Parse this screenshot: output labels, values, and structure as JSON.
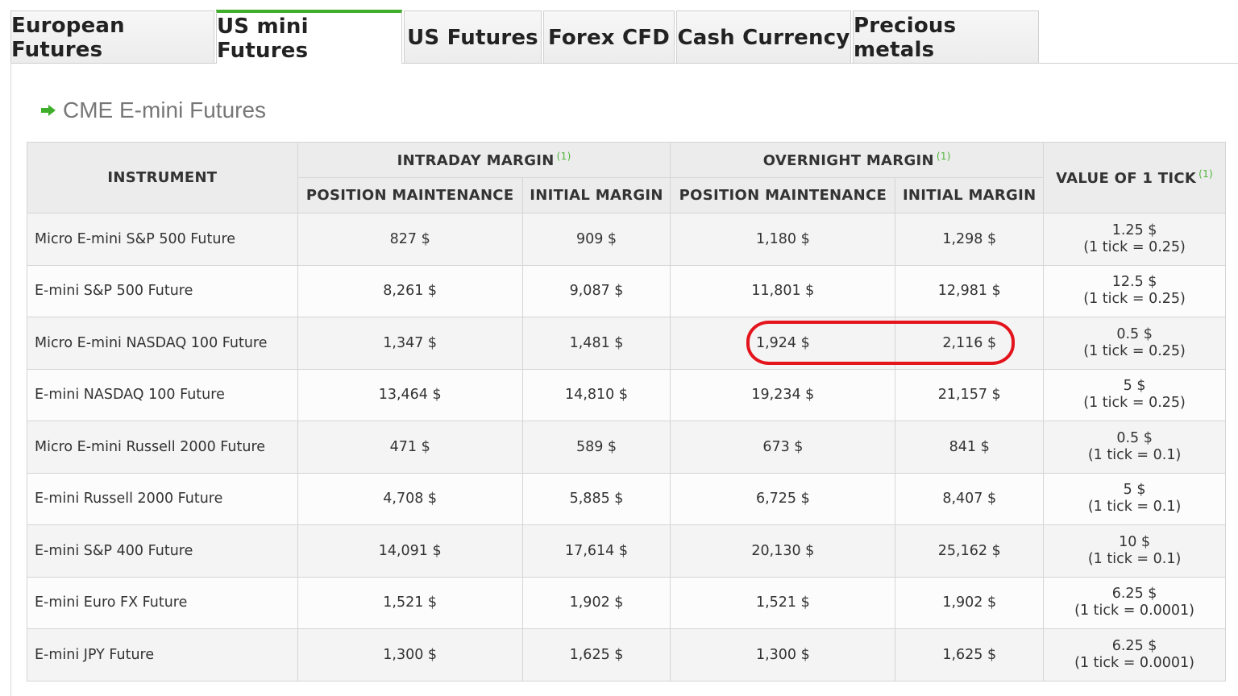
{
  "tabs": [
    {
      "label": "European Futures",
      "active": false
    },
    {
      "label": "US mini Futures",
      "active": true
    },
    {
      "label": "US Futures",
      "active": false
    },
    {
      "label": "Forex CFD",
      "active": false
    },
    {
      "label": "Cash Currency",
      "active": false
    },
    {
      "label": "Precious metals",
      "active": false
    }
  ],
  "section": {
    "title": "CME E-mini Futures",
    "icon": "arrow-right-icon",
    "icon_color": "#3fae2a"
  },
  "table": {
    "headers": {
      "instrument": "INSTRUMENT",
      "intraday": "INTRADAY MARGIN",
      "overnight": "OVERNIGHT MARGIN",
      "value_tick": "VALUE OF 1 TICK",
      "footnote": "(1)",
      "position_maintenance": "POSITION MAINTENANCE",
      "initial_margin": "INITIAL MARGIN"
    },
    "rows": [
      {
        "instrument": "Micro E-mini S&P 500 Future",
        "intraday_pm": "827 $",
        "intraday_im": "909 $",
        "overnight_pm": "1,180 $",
        "overnight_im": "1,298 $",
        "tick_value": "1.25 $",
        "tick_size": "(1 tick = 0.25)"
      },
      {
        "instrument": "E-mini S&P 500 Future",
        "intraday_pm": "8,261 $",
        "intraday_im": "9,087 $",
        "overnight_pm": "11,801 $",
        "overnight_im": "12,981 $",
        "tick_value": "12.5 $",
        "tick_size": "(1 tick = 0.25)"
      },
      {
        "instrument": "Micro E-mini NASDAQ 100 Future",
        "intraday_pm": "1,347 $",
        "intraday_im": "1,481 $",
        "overnight_pm": "1,924 $",
        "overnight_im": "2,116 $",
        "tick_value": "0.5 $",
        "tick_size": "(1 tick = 0.25)"
      },
      {
        "instrument": "E-mini NASDAQ 100 Future",
        "intraday_pm": "13,464 $",
        "intraday_im": "14,810 $",
        "overnight_pm": "19,234 $",
        "overnight_im": "21,157 $",
        "tick_value": "5 $",
        "tick_size": "(1 tick = 0.25)"
      },
      {
        "instrument": "Micro E-mini Russell 2000 Future",
        "intraday_pm": "471 $",
        "intraday_im": "589 $",
        "overnight_pm": "673 $",
        "overnight_im": "841 $",
        "tick_value": "0.5 $",
        "tick_size": "(1 tick = 0.1)"
      },
      {
        "instrument": "E-mini Russell 2000 Future",
        "intraday_pm": "4,708 $",
        "intraday_im": "5,885 $",
        "overnight_pm": "6,725 $",
        "overnight_im": "8,407 $",
        "tick_value": "5 $",
        "tick_size": "(1 tick = 0.1)"
      },
      {
        "instrument": "E-mini S&P 400 Future",
        "intraday_pm": "14,091 $",
        "intraday_im": "17,614 $",
        "overnight_pm": "20,130 $",
        "overnight_im": "25,162 $",
        "tick_value": "10 $",
        "tick_size": "(1 tick = 0.1)"
      },
      {
        "instrument": "E-mini Euro FX Future",
        "intraday_pm": "1,521 $",
        "intraday_im": "1,902 $",
        "overnight_pm": "1,521 $",
        "overnight_im": "1,902 $",
        "tick_value": "6.25 $",
        "tick_size": "(1 tick = 0.0001)"
      },
      {
        "instrument": "E-mini JPY Future",
        "intraday_pm": "1,300 $",
        "intraday_im": "1,625 $",
        "overnight_pm": "1,300 $",
        "overnight_im": "1,625 $",
        "tick_value": "6.25 $",
        "tick_size": "(1 tick = 0.0001)"
      }
    ]
  },
  "annotation": {
    "highlight_color": "#e3141c"
  }
}
